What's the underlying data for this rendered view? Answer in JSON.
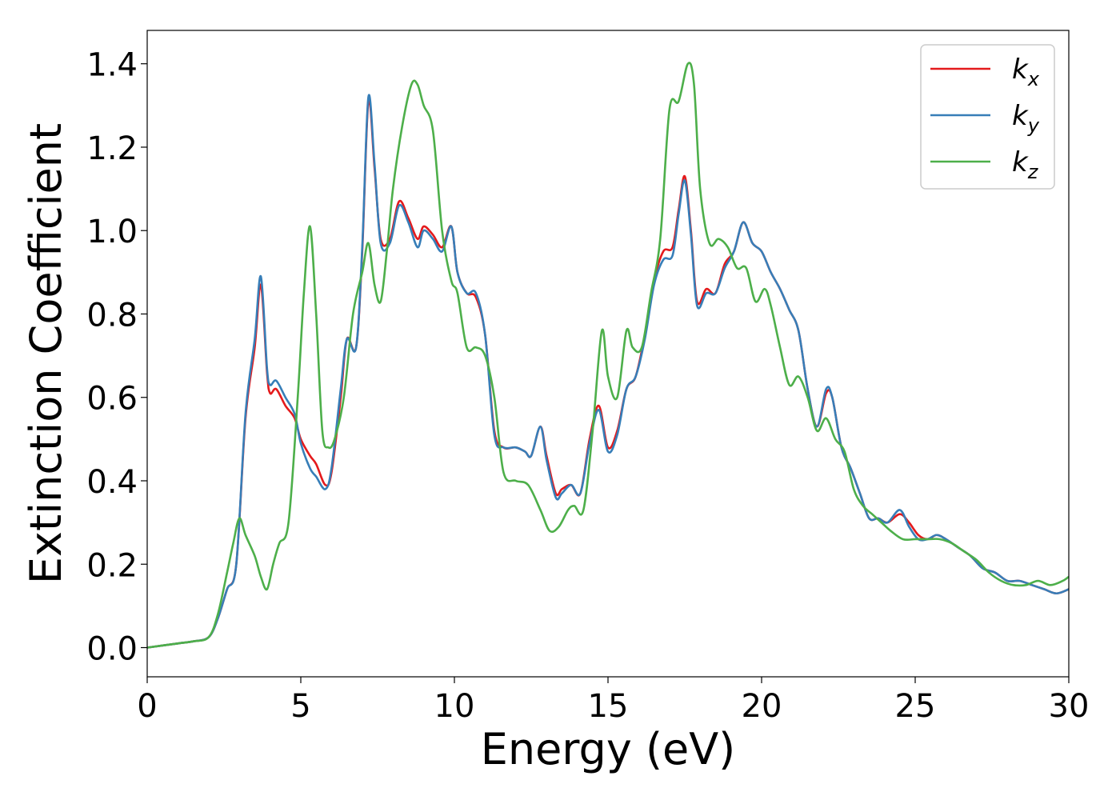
{
  "chart_data": {
    "type": "line",
    "title": "",
    "xlabel": "Energy (eV)",
    "ylabel": "Extinction Coefficient",
    "xlim": [
      0,
      30
    ],
    "ylim": [
      -0.07,
      1.48
    ],
    "xticks": [
      0,
      5,
      10,
      15,
      20,
      25,
      30
    ],
    "xtick_labels": [
      "0",
      "5",
      "10",
      "15",
      "20",
      "25",
      "30"
    ],
    "yticks": [
      0.0,
      0.2,
      0.4,
      0.6,
      0.8,
      1.0,
      1.2,
      1.4
    ],
    "ytick_labels": [
      "0.0",
      "0.2",
      "0.4",
      "0.6",
      "0.8",
      "1.0",
      "1.2",
      "1.4"
    ],
    "grid": false,
    "legend_position": "top-right",
    "series": [
      {
        "name": "k_x",
        "base": "k",
        "sub": "x",
        "color": "#e41a1c",
        "x": [
          0,
          1,
          1.5,
          2,
          2.3,
          2.6,
          2.9,
          3.2,
          3.5,
          3.7,
          3.9,
          4.0,
          4.2,
          4.5,
          4.8,
          5.0,
          5.3,
          5.5,
          5.8,
          6.0,
          6.3,
          6.5,
          6.8,
          7.0,
          7.2,
          7.4,
          7.6,
          7.9,
          8.2,
          8.5,
          8.8,
          9.0,
          9.3,
          9.6,
          9.9,
          10.1,
          10.4,
          10.7,
          11.0,
          11.3,
          11.6,
          12.0,
          12.3,
          12.5,
          12.8,
          13.0,
          13.3,
          13.5,
          13.8,
          14.1,
          14.4,
          14.7,
          15.0,
          15.3,
          15.6,
          15.9,
          16.2,
          16.5,
          16.8,
          17.1,
          17.3,
          17.5,
          17.7,
          17.9,
          18.2,
          18.5,
          18.8,
          19.1,
          19.4,
          19.7,
          20.0,
          20.3,
          20.6,
          20.9,
          21.2,
          21.5,
          21.8,
          22.1,
          22.3,
          22.6,
          22.9,
          23.2,
          23.5,
          23.8,
          24.1,
          24.5,
          24.8,
          25.1,
          25.4,
          25.7,
          26.0,
          26.4,
          26.8,
          27.2,
          27.6,
          28.0,
          28.4,
          28.8,
          29.2,
          29.6,
          30.0
        ],
        "y": [
          0,
          0.01,
          0.015,
          0.025,
          0.07,
          0.14,
          0.2,
          0.55,
          0.72,
          0.87,
          0.66,
          0.61,
          0.62,
          0.58,
          0.55,
          0.5,
          0.46,
          0.44,
          0.39,
          0.42,
          0.6,
          0.74,
          0.72,
          0.95,
          1.31,
          1.15,
          0.98,
          0.98,
          1.07,
          1.03,
          0.98,
          1.01,
          0.99,
          0.96,
          1.01,
          0.9,
          0.85,
          0.84,
          0.75,
          0.52,
          0.48,
          0.48,
          0.47,
          0.46,
          0.53,
          0.46,
          0.37,
          0.38,
          0.39,
          0.37,
          0.5,
          0.58,
          0.48,
          0.52,
          0.62,
          0.65,
          0.75,
          0.88,
          0.95,
          0.96,
          1.05,
          1.13,
          1.0,
          0.83,
          0.86,
          0.85,
          0.92,
          0.95,
          1.02,
          0.97,
          0.95,
          0.9,
          0.86,
          0.81,
          0.76,
          0.62,
          0.53,
          0.61,
          0.6,
          0.48,
          0.43,
          0.37,
          0.31,
          0.31,
          0.3,
          0.32,
          0.3,
          0.27,
          0.26,
          0.27,
          0.26,
          0.24,
          0.22,
          0.19,
          0.18,
          0.16,
          0.16,
          0.15,
          0.14,
          0.13,
          0.14
        ]
      },
      {
        "name": "k_y",
        "base": "k",
        "sub": "y",
        "color": "#377eb8",
        "x": [
          0,
          1,
          1.5,
          2,
          2.3,
          2.6,
          2.9,
          3.2,
          3.5,
          3.7,
          3.9,
          4.0,
          4.2,
          4.5,
          4.8,
          5.0,
          5.3,
          5.5,
          5.8,
          6.0,
          6.3,
          6.5,
          6.8,
          7.0,
          7.2,
          7.4,
          7.6,
          7.9,
          8.2,
          8.5,
          8.8,
          9.0,
          9.3,
          9.6,
          9.9,
          10.1,
          10.4,
          10.7,
          11.0,
          11.3,
          11.6,
          12.0,
          12.3,
          12.5,
          12.8,
          13.0,
          13.3,
          13.5,
          13.8,
          14.1,
          14.4,
          14.7,
          15.0,
          15.3,
          15.6,
          15.9,
          16.2,
          16.5,
          16.8,
          17.1,
          17.3,
          17.5,
          17.7,
          17.9,
          18.2,
          18.5,
          18.8,
          19.1,
          19.4,
          19.7,
          20.0,
          20.3,
          20.6,
          20.9,
          21.2,
          21.5,
          21.8,
          22.1,
          22.3,
          22.6,
          22.9,
          23.2,
          23.5,
          23.8,
          24.1,
          24.5,
          24.8,
          25.1,
          25.4,
          25.7,
          26.0,
          26.4,
          26.8,
          27.2,
          27.6,
          28.0,
          28.4,
          28.8,
          29.2,
          29.6,
          30.0
        ],
        "y": [
          0,
          0.01,
          0.015,
          0.025,
          0.07,
          0.14,
          0.2,
          0.56,
          0.74,
          0.89,
          0.67,
          0.63,
          0.64,
          0.6,
          0.56,
          0.49,
          0.43,
          0.41,
          0.38,
          0.43,
          0.62,
          0.74,
          0.72,
          0.96,
          1.32,
          1.16,
          0.97,
          0.97,
          1.06,
          1.02,
          0.96,
          1.0,
          0.98,
          0.95,
          1.01,
          0.9,
          0.85,
          0.85,
          0.75,
          0.51,
          0.48,
          0.48,
          0.47,
          0.46,
          0.53,
          0.45,
          0.36,
          0.37,
          0.39,
          0.37,
          0.49,
          0.57,
          0.47,
          0.51,
          0.62,
          0.65,
          0.74,
          0.87,
          0.93,
          0.94,
          1.04,
          1.12,
          0.99,
          0.82,
          0.85,
          0.85,
          0.91,
          0.95,
          1.02,
          0.97,
          0.95,
          0.9,
          0.86,
          0.81,
          0.76,
          0.62,
          0.53,
          0.62,
          0.6,
          0.48,
          0.43,
          0.37,
          0.31,
          0.31,
          0.3,
          0.33,
          0.29,
          0.26,
          0.26,
          0.27,
          0.26,
          0.24,
          0.22,
          0.19,
          0.18,
          0.16,
          0.16,
          0.15,
          0.14,
          0.13,
          0.14
        ]
      },
      {
        "name": "k_z",
        "base": "k",
        "sub": "z",
        "color": "#4daf4a",
        "x": [
          0,
          1,
          1.5,
          2,
          2.3,
          2.6,
          2.8,
          3.0,
          3.2,
          3.5,
          3.7,
          3.9,
          4.1,
          4.3,
          4.6,
          4.9,
          5.1,
          5.3,
          5.5,
          5.7,
          5.9,
          6.1,
          6.4,
          6.7,
          7.0,
          7.2,
          7.4,
          7.6,
          7.8,
          8.0,
          8.3,
          8.6,
          8.8,
          9.0,
          9.3,
          9.6,
          9.9,
          10.1,
          10.4,
          10.7,
          11.0,
          11.3,
          11.6,
          12.0,
          12.4,
          12.8,
          13.1,
          13.4,
          13.7,
          13.9,
          14.2,
          14.5,
          14.8,
          15.0,
          15.3,
          15.6,
          15.8,
          16.1,
          16.4,
          16.7,
          17.0,
          17.3,
          17.6,
          17.8,
          18.0,
          18.3,
          18.6,
          18.9,
          19.2,
          19.5,
          19.8,
          20.1,
          20.3,
          20.6,
          20.9,
          21.2,
          21.5,
          21.8,
          22.1,
          22.4,
          22.7,
          23.0,
          23.3,
          23.6,
          23.9,
          24.2,
          24.6,
          25.0,
          25.4,
          25.8,
          26.2,
          26.6,
          27.0,
          27.4,
          27.8,
          28.2,
          28.6,
          29.0,
          29.4,
          29.8,
          30.0
        ],
        "y": [
          0,
          0.01,
          0.015,
          0.025,
          0.08,
          0.18,
          0.25,
          0.31,
          0.27,
          0.22,
          0.17,
          0.14,
          0.2,
          0.25,
          0.3,
          0.6,
          0.85,
          1.01,
          0.8,
          0.52,
          0.48,
          0.5,
          0.6,
          0.8,
          0.9,
          0.97,
          0.87,
          0.83,
          0.95,
          1.1,
          1.25,
          1.35,
          1.35,
          1.3,
          1.24,
          1.0,
          0.88,
          0.85,
          0.72,
          0.72,
          0.7,
          0.6,
          0.42,
          0.4,
          0.39,
          0.33,
          0.28,
          0.29,
          0.33,
          0.34,
          0.33,
          0.52,
          0.76,
          0.65,
          0.6,
          0.76,
          0.72,
          0.72,
          0.85,
          0.98,
          1.29,
          1.31,
          1.4,
          1.35,
          1.1,
          0.97,
          0.98,
          0.96,
          0.91,
          0.91,
          0.83,
          0.86,
          0.82,
          0.72,
          0.63,
          0.65,
          0.6,
          0.52,
          0.55,
          0.5,
          0.47,
          0.38,
          0.34,
          0.32,
          0.3,
          0.28,
          0.26,
          0.26,
          0.26,
          0.26,
          0.25,
          0.23,
          0.21,
          0.18,
          0.16,
          0.15,
          0.15,
          0.16,
          0.15,
          0.16,
          0.17
        ]
      }
    ]
  }
}
